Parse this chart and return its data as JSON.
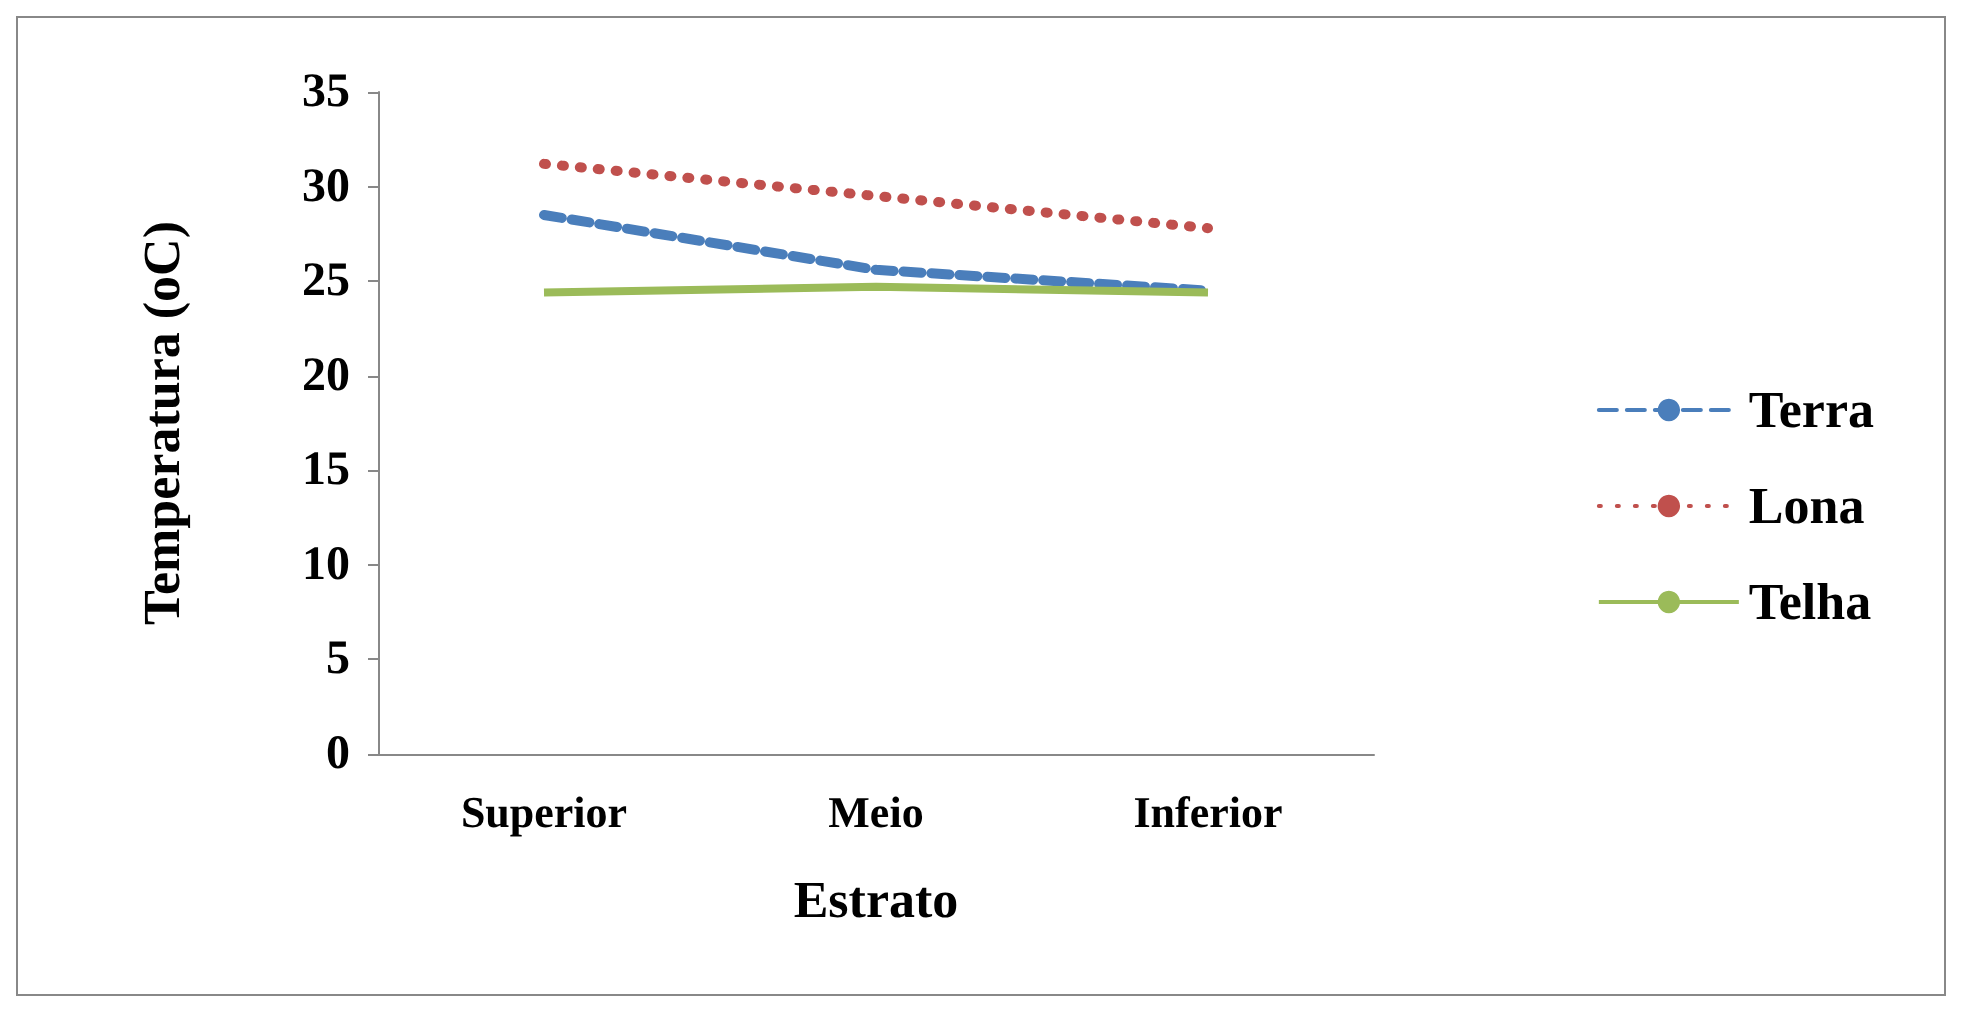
{
  "chart_data": {
    "type": "line",
    "xlabel": "Estrato",
    "ylabel": "Temperatura (oC)",
    "categories": [
      "Superior",
      "Meio",
      "Inferior"
    ],
    "series": [
      {
        "name": "Terra",
        "color": "#4a7ebb",
        "values": [
          28.5,
          25.6,
          24.5
        ],
        "line_style": "dashed"
      },
      {
        "name": "Lona",
        "color": "#c0504d",
        "values": [
          31.2,
          29.5,
          27.8
        ],
        "line_style": "dotted"
      },
      {
        "name": "Telha",
        "color": "#9bbb59",
        "values": [
          24.4,
          24.7,
          24.4
        ],
        "line_style": "solid"
      }
    ],
    "ylim": [
      0,
      35
    ],
    "yticks": [
      0,
      5,
      10,
      15,
      20,
      25,
      30,
      35
    ],
    "grid": false,
    "legend": "right",
    "marker": "none"
  }
}
